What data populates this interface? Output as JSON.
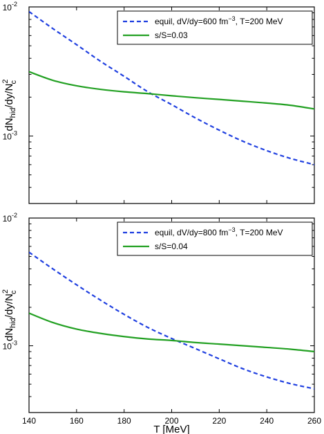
{
  "chart_data": [
    {
      "type": "line",
      "title": "",
      "xlabel": "",
      "ylabel": "dN_hid/dy/N_c^2",
      "ylabel_parts": {
        "main": "dN",
        "sub": "hid",
        "mid": "/dy/N",
        "sup": "2",
        "sub2": "c"
      },
      "xlim": [
        140,
        260
      ],
      "ylim": [
        0.0003,
        0.01
      ],
      "yscale": "log",
      "x_ticks": [
        140,
        160,
        180,
        200,
        220,
        240,
        260
      ],
      "x_tick_labels_shown": false,
      "y_tick_labels": [
        {
          "value": 0.01,
          "base": "10",
          "exp": "-2"
        },
        {
          "value": 0.001,
          "base": "10",
          "exp": "-3"
        }
      ],
      "grid": false,
      "legend_position": "top-right",
      "series": [
        {
          "name": "equil, dV/dy=600 fm^-3, T=200 MeV",
          "legend_parts": {
            "pre": "equil, dV/dy=600 fm",
            "sup": "−3",
            "post": ", T=200 MeV"
          },
          "style": "dashed",
          "color": "#1f3fe0",
          "x": [
            140,
            150,
            160,
            170,
            180,
            190,
            200,
            210,
            220,
            230,
            240,
            250,
            260
          ],
          "y": [
            0.0092,
            0.0068,
            0.0051,
            0.0038,
            0.0029,
            0.0022,
            0.00175,
            0.00138,
            0.00111,
            0.00091,
            0.00077,
            0.00067,
            0.0006
          ]
        },
        {
          "name": "s/S=0.03",
          "style": "solid",
          "color": "#22a022",
          "x": [
            140,
            150,
            160,
            170,
            180,
            190,
            200,
            210,
            220,
            230,
            240,
            250,
            260
          ],
          "y": [
            0.00315,
            0.0027,
            0.00245,
            0.0023,
            0.0022,
            0.00213,
            0.00205,
            0.00198,
            0.00192,
            0.00186,
            0.0018,
            0.00173,
            0.00162
          ]
        }
      ]
    },
    {
      "type": "line",
      "title": "",
      "xlabel": "T [MeV]",
      "ylabel": "dN_hid/dy/N_c^2",
      "ylabel_parts": {
        "main": "dN",
        "sub": "hid",
        "mid": "/dy/N",
        "sup": "2",
        "sub2": "c"
      },
      "xlim": [
        140,
        260
      ],
      "ylim": [
        0.0003,
        0.01
      ],
      "yscale": "log",
      "x_ticks": [
        140,
        160,
        180,
        200,
        220,
        240,
        260
      ],
      "x_tick_labels": [
        "140",
        "160",
        "180",
        "200",
        "220",
        "240",
        "260"
      ],
      "x_tick_labels_shown": true,
      "y_tick_labels": [
        {
          "value": 0.01,
          "base": "10",
          "exp": "-2"
        },
        {
          "value": 0.001,
          "base": "10",
          "exp": "-3"
        }
      ],
      "grid": false,
      "legend_position": "top-right",
      "series": [
        {
          "name": "equil, dV/dy=800 fm^-3, T=200 MeV",
          "legend_parts": {
            "pre": "equil, dV/dy=800 fm",
            "sup": "−3",
            "post": ", T=200 MeV"
          },
          "style": "dashed",
          "color": "#1f3fe0",
          "x": [
            140,
            150,
            160,
            170,
            180,
            190,
            200,
            210,
            220,
            230,
            240,
            250,
            260
          ],
          "y": [
            0.0054,
            0.004,
            0.003,
            0.00228,
            0.00176,
            0.00139,
            0.00114,
            0.00095,
            0.00079,
            0.00066,
            0.00057,
            0.000505,
            0.00046
          ]
        },
        {
          "name": "s/S=0.04",
          "style": "solid",
          "color": "#22a022",
          "x": [
            140,
            150,
            160,
            170,
            180,
            190,
            200,
            210,
            220,
            230,
            240,
            250,
            260
          ],
          "y": [
            0.0018,
            0.00152,
            0.00135,
            0.00125,
            0.00118,
            0.00113,
            0.0011,
            0.00106,
            0.00103,
            0.001,
            0.00097,
            0.00094,
            0.0009
          ]
        }
      ]
    }
  ]
}
